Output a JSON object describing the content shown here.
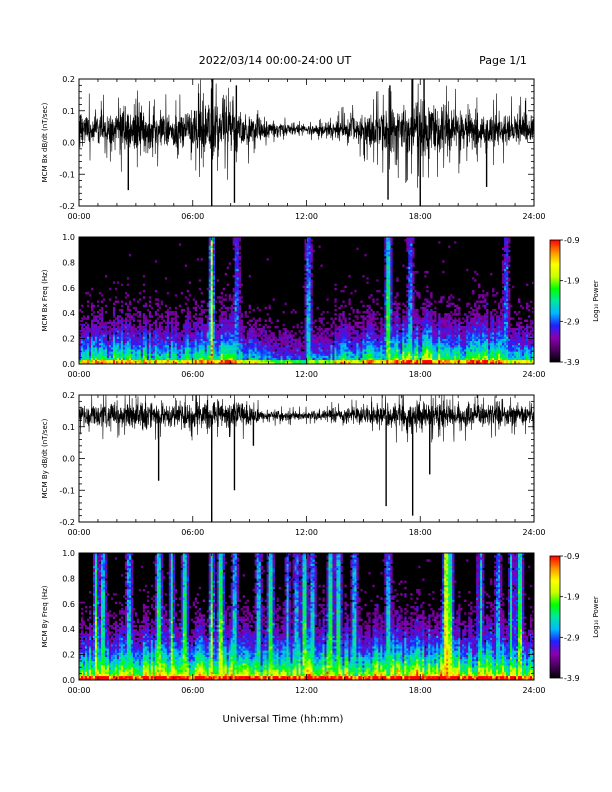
{
  "header": {
    "title": "2022/03/14  00:00-24:00 UT",
    "page": "Page 1/1"
  },
  "xlabel": "Universal Time (hh:mm)",
  "colorbar": {
    "label": "Log₁₀ Power",
    "ticks": [
      "-0.9",
      "-1.9",
      "-2.9",
      "-3.9"
    ],
    "range": [
      -3.9,
      -0.9
    ],
    "colors": [
      "#000000",
      "#4a0060",
      "#8a00b0",
      "#2020ff",
      "#00b8ff",
      "#00e8a0",
      "#00ff00",
      "#c8ff00",
      "#ffff00",
      "#ff9000",
      "#ff0000"
    ]
  },
  "chart_data": [
    {
      "type": "line",
      "ylabel": "MCM Bx dB/dt (nT/sec)",
      "xlim": [
        0,
        24
      ],
      "ylim": [
        -0.2,
        0.2
      ],
      "x_ticks": [
        "00:00",
        "06:00",
        "12:00",
        "18:00",
        "24:00"
      ],
      "y_ticks": [
        "0.2",
        "0.1",
        "0.0",
        "-0.1",
        "-0.2"
      ],
      "y_tick_values": [
        0.2,
        0.1,
        0.0,
        -0.1,
        -0.2
      ],
      "series": [
        {
          "baseline": 0.04,
          "envelope_x": [
            0,
            1,
            2,
            3,
            4,
            5,
            6,
            7,
            8,
            9,
            10,
            11,
            12,
            13,
            14,
            15,
            16,
            17,
            18,
            19,
            20,
            21,
            22,
            23,
            24
          ],
          "envelope_amp": [
            0.06,
            0.06,
            0.07,
            0.08,
            0.07,
            0.06,
            0.07,
            0.1,
            0.08,
            0.06,
            0.035,
            0.02,
            0.015,
            0.025,
            0.04,
            0.05,
            0.07,
            0.08,
            0.1,
            0.09,
            0.07,
            0.06,
            0.06,
            0.055,
            0.05
          ],
          "spikes": [
            [
              6.1,
              0.1
            ],
            [
              7.0,
              -0.2
            ],
            [
              7.05,
              0.2
            ],
            [
              8.2,
              -0.19
            ],
            [
              8.3,
              0.18
            ],
            [
              2.6,
              -0.15
            ],
            [
              16.3,
              -0.18
            ],
            [
              16.4,
              0.18
            ],
            [
              17.6,
              0.2
            ],
            [
              18.0,
              -0.2
            ],
            [
              18.2,
              0.2
            ],
            [
              21.5,
              -0.14
            ]
          ]
        }
      ]
    },
    {
      "type": "heatmap",
      "ylabel": "MCM Bx Freq (Hz)",
      "xlim": [
        0,
        24
      ],
      "ylim": [
        0.0,
        1.0
      ],
      "x_ticks": [
        "00:00",
        "06:00",
        "12:00",
        "18:00",
        "24:00"
      ],
      "y_ticks": [
        "1.0",
        "0.8",
        "0.6",
        "0.4",
        "0.2",
        "0.0"
      ],
      "y_tick_values": [
        1.0,
        0.8,
        0.6,
        0.4,
        0.2,
        0.0
      ],
      "activity_x": [
        0,
        1,
        2,
        3,
        4,
        5,
        6,
        7,
        8,
        9,
        10,
        11,
        12,
        13,
        14,
        15,
        16,
        17,
        18,
        19,
        20,
        21,
        22,
        23,
        24
      ],
      "activity_level": [
        0.55,
        0.55,
        0.6,
        0.6,
        0.55,
        0.55,
        0.6,
        0.65,
        0.6,
        0.5,
        0.4,
        0.35,
        0.35,
        0.45,
        0.55,
        0.55,
        0.6,
        0.7,
        0.75,
        0.7,
        0.65,
        0.65,
        0.65,
        0.6,
        0.55
      ],
      "bright_columns": [
        [
          7.0,
          1.0
        ],
        [
          16.3,
          0.75
        ],
        [
          12.1,
          0.55
        ],
        [
          17.5,
          0.5
        ],
        [
          22.5,
          0.45
        ],
        [
          8.3,
          0.45
        ]
      ]
    },
    {
      "type": "line",
      "ylabel": "MCM By dB/dt (nT/sec)",
      "xlim": [
        0,
        24
      ],
      "ylim": [
        -0.2,
        0.2
      ],
      "x_ticks": [
        "00:00",
        "06:00",
        "12:00",
        "18:00",
        "24:00"
      ],
      "y_ticks": [
        "0.2",
        "0.1",
        "0.0",
        "-0.1",
        "-0.2"
      ],
      "y_tick_values": [
        0.2,
        0.1,
        0.0,
        -0.1,
        -0.2
      ],
      "series": [
        {
          "baseline": 0.135,
          "envelope_x": [
            0,
            1,
            2,
            3,
            4,
            5,
            6,
            7,
            8,
            9,
            10,
            11,
            12,
            13,
            14,
            15,
            16,
            17,
            18,
            19,
            20,
            21,
            22,
            23,
            24
          ],
          "envelope_amp": [
            0.035,
            0.04,
            0.04,
            0.045,
            0.045,
            0.04,
            0.045,
            0.05,
            0.05,
            0.035,
            0.02,
            0.015,
            0.015,
            0.02,
            0.025,
            0.03,
            0.04,
            0.045,
            0.05,
            0.045,
            0.04,
            0.04,
            0.035,
            0.035,
            0.03
          ],
          "spikes": [
            [
              7.0,
              -0.2
            ],
            [
              8.2,
              -0.1
            ],
            [
              4.2,
              -0.07
            ],
            [
              16.2,
              -0.15
            ],
            [
              17.6,
              -0.18
            ],
            [
              18.5,
              -0.05
            ],
            [
              9.2,
              0.04
            ]
          ]
        }
      ]
    },
    {
      "type": "heatmap",
      "ylabel": "MCM By Freq (Hz)",
      "xlim": [
        0,
        24
      ],
      "ylim": [
        0.0,
        1.0
      ],
      "x_ticks": [
        "00:00",
        "06:00",
        "12:00",
        "18:00",
        "24:00"
      ],
      "y_ticks": [
        "1.0",
        "0.8",
        "0.6",
        "0.4",
        "0.2",
        "0.0"
      ],
      "y_tick_values": [
        1.0,
        0.8,
        0.6,
        0.4,
        0.2,
        0.0
      ],
      "activity_x": [
        0,
        1,
        2,
        3,
        4,
        5,
        6,
        7,
        8,
        9,
        10,
        11,
        12,
        13,
        14,
        15,
        16,
        17,
        18,
        19,
        20,
        21,
        22,
        23,
        24
      ],
      "activity_level": [
        0.7,
        0.75,
        0.75,
        0.75,
        0.8,
        0.8,
        0.8,
        0.85,
        0.85,
        0.8,
        0.75,
        0.75,
        0.8,
        0.85,
        0.8,
        0.75,
        0.8,
        0.8,
        0.85,
        0.85,
        0.8,
        0.8,
        0.8,
        0.75,
        0.75
      ],
      "bright_columns": [
        [
          0.9,
          0.85
        ],
        [
          1.3,
          0.65
        ],
        [
          2.6,
          0.6
        ],
        [
          4.2,
          0.75
        ],
        [
          4.9,
          0.8
        ],
        [
          5.6,
          0.75
        ],
        [
          7.0,
          0.9
        ],
        [
          7.5,
          0.85
        ],
        [
          8.2,
          0.6
        ],
        [
          9.5,
          0.6
        ],
        [
          10.1,
          0.75
        ],
        [
          11.0,
          0.6
        ],
        [
          11.5,
          0.55
        ],
        [
          11.9,
          0.75
        ],
        [
          12.3,
          0.6
        ],
        [
          13.3,
          0.75
        ],
        [
          13.7,
          0.7
        ],
        [
          14.5,
          0.6
        ],
        [
          16.3,
          0.6
        ],
        [
          19.4,
          1.0
        ],
        [
          19.6,
          0.85
        ],
        [
          21.2,
          0.7
        ],
        [
          22.1,
          0.55
        ],
        [
          22.8,
          0.7
        ],
        [
          23.3,
          0.8
        ]
      ]
    }
  ]
}
